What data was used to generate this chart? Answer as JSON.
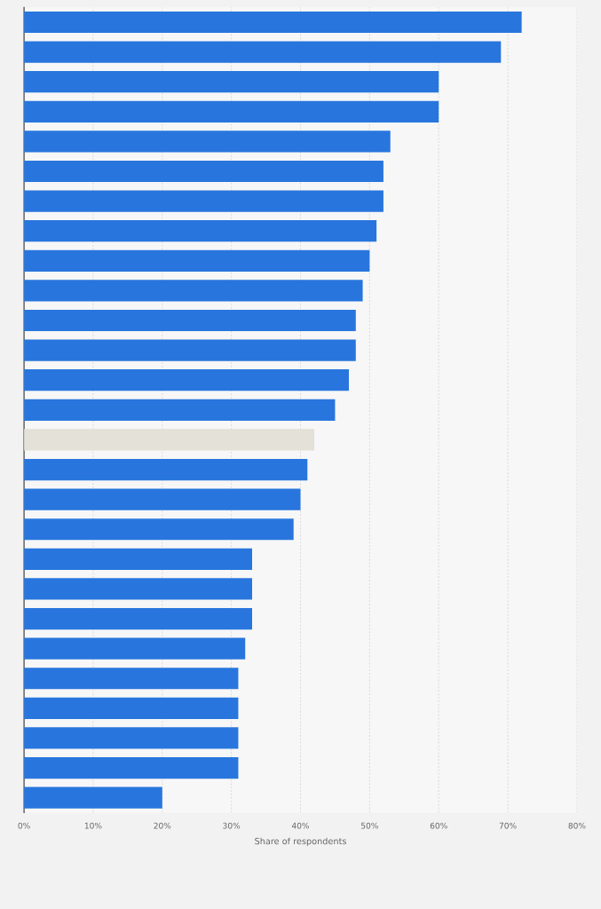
{
  "chart_data": {
    "type": "bar",
    "orientation": "horizontal",
    "xlabel": "Share of respondents",
    "categories": [
      null,
      null,
      null,
      null,
      null,
      null,
      null,
      null,
      null,
      null,
      null,
      null,
      null,
      null,
      null,
      null,
      null,
      null,
      null,
      null,
      null,
      null,
      null,
      null,
      null,
      null,
      null
    ],
    "values": [
      72,
      69,
      60,
      60,
      53,
      52,
      52,
      51,
      50,
      49,
      48,
      48,
      47,
      45,
      42,
      41,
      40,
      39,
      33,
      33,
      33,
      32,
      31,
      31,
      31,
      31,
      20
    ],
    "colors": [
      "#2876dd",
      "#2876dd",
      "#2876dd",
      "#2876dd",
      "#2876dd",
      "#2876dd",
      "#2876dd",
      "#2876dd",
      "#2876dd",
      "#2876dd",
      "#2876dd",
      "#2876dd",
      "#2876dd",
      "#2876dd",
      "#e3e1d8",
      "#2876dd",
      "#2876dd",
      "#2876dd",
      "#2876dd",
      "#2876dd",
      "#2876dd",
      "#2876dd",
      "#2876dd",
      "#2876dd",
      "#2876dd",
      "#2876dd",
      "#2876dd"
    ],
    "xlim": [
      0,
      80
    ],
    "xticks": [
      {
        "value": 0,
        "label": "0%"
      },
      {
        "value": 10,
        "label": "10%"
      },
      {
        "value": 20,
        "label": "20%"
      },
      {
        "value": 30,
        "label": "30%"
      },
      {
        "value": 40,
        "label": "40%"
      },
      {
        "value": 50,
        "label": "50%"
      },
      {
        "value": 60,
        "label": "60%"
      },
      {
        "value": 70,
        "label": "70%"
      },
      {
        "value": 80,
        "label": "80%"
      }
    ],
    "grid": "x"
  }
}
